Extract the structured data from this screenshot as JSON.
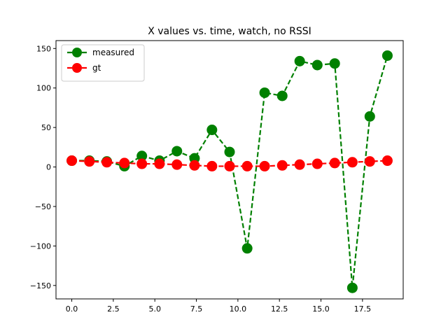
{
  "chart_data": {
    "type": "line",
    "title": "X values vs. time, watch, no RSSI",
    "xlabel": "",
    "ylabel": "",
    "xlim": [
      -0.95,
      19.95
    ],
    "ylim": [
      -167,
      160
    ],
    "xticks": [
      0.0,
      2.5,
      5.0,
      7.5,
      10.0,
      12.5,
      15.0,
      17.5
    ],
    "xtick_labels": [
      "0.0",
      "2.5",
      "5.0",
      "7.5",
      "10.0",
      "12.5",
      "15.0",
      "17.5"
    ],
    "yticks": [
      -150,
      -100,
      -50,
      0,
      50,
      100,
      150
    ],
    "ytick_labels": [
      "−150",
      "−100",
      "−50",
      "0",
      "50",
      "100",
      "150"
    ],
    "grid": false,
    "legend_position": "top-left",
    "series": [
      {
        "name": "measured",
        "color": "#008000",
        "marker": "circle",
        "line_style": "dashed",
        "x": [
          0,
          1.06,
          2.11,
          3.17,
          4.22,
          5.28,
          6.33,
          7.39,
          8.44,
          9.5,
          10.56,
          11.61,
          12.67,
          13.72,
          14.78,
          15.83,
          16.89,
          17.94,
          19
        ],
        "y": [
          8,
          8,
          7,
          1,
          14,
          8,
          20,
          11,
          47,
          19,
          -103,
          94,
          90,
          134,
          129,
          131,
          -153,
          64,
          141
        ]
      },
      {
        "name": "gt",
        "color": "#ff0000",
        "marker": "circle",
        "line_style": "dashed",
        "x": [
          0,
          1.06,
          2.11,
          3.17,
          4.22,
          5.28,
          6.33,
          7.39,
          8.44,
          9.5,
          10.56,
          11.61,
          12.67,
          13.72,
          14.78,
          15.83,
          16.89,
          17.94,
          19
        ],
        "y": [
          8,
          7,
          6,
          5,
          4,
          4,
          3,
          2,
          1,
          1,
          1,
          1,
          2,
          3,
          4,
          5,
          6,
          7,
          8
        ]
      }
    ]
  }
}
